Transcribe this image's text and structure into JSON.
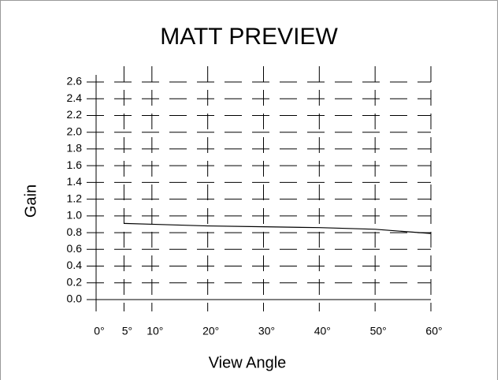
{
  "chart_data": {
    "type": "line",
    "title": "MATT PREVIEW",
    "xlabel": "View Angle",
    "ylabel": "Gain",
    "x": [
      5,
      10,
      20,
      30,
      40,
      50,
      60
    ],
    "series": [
      {
        "name": "Gain",
        "color": "#000000",
        "values": [
          0.91,
          0.9,
          0.88,
          0.87,
          0.86,
          0.84,
          0.79
        ]
      }
    ],
    "xlim": [
      0,
      60
    ],
    "xticks": [
      {
        "value": 0,
        "label": "0°"
      },
      {
        "value": 5,
        "label": "5°"
      },
      {
        "value": 10,
        "label": "10°"
      },
      {
        "value": 20,
        "label": "20°"
      },
      {
        "value": 30,
        "label": "30°"
      },
      {
        "value": 40,
        "label": "40°"
      },
      {
        "value": 50,
        "label": "50°"
      },
      {
        "value": 60,
        "label": "60°"
      }
    ],
    "ylim": [
      0,
      2.6
    ],
    "yticks": [
      {
        "value": 0,
        "label": "0.0"
      },
      0.2,
      0.4,
      0.6,
      0.8,
      {
        "value": 1,
        "label": "1.0"
      },
      1.2,
      1.4,
      1.6,
      1.8,
      {
        "value": 2,
        "label": "2.0"
      },
      2.2,
      2.4,
      2.6
    ],
    "grid": true
  }
}
